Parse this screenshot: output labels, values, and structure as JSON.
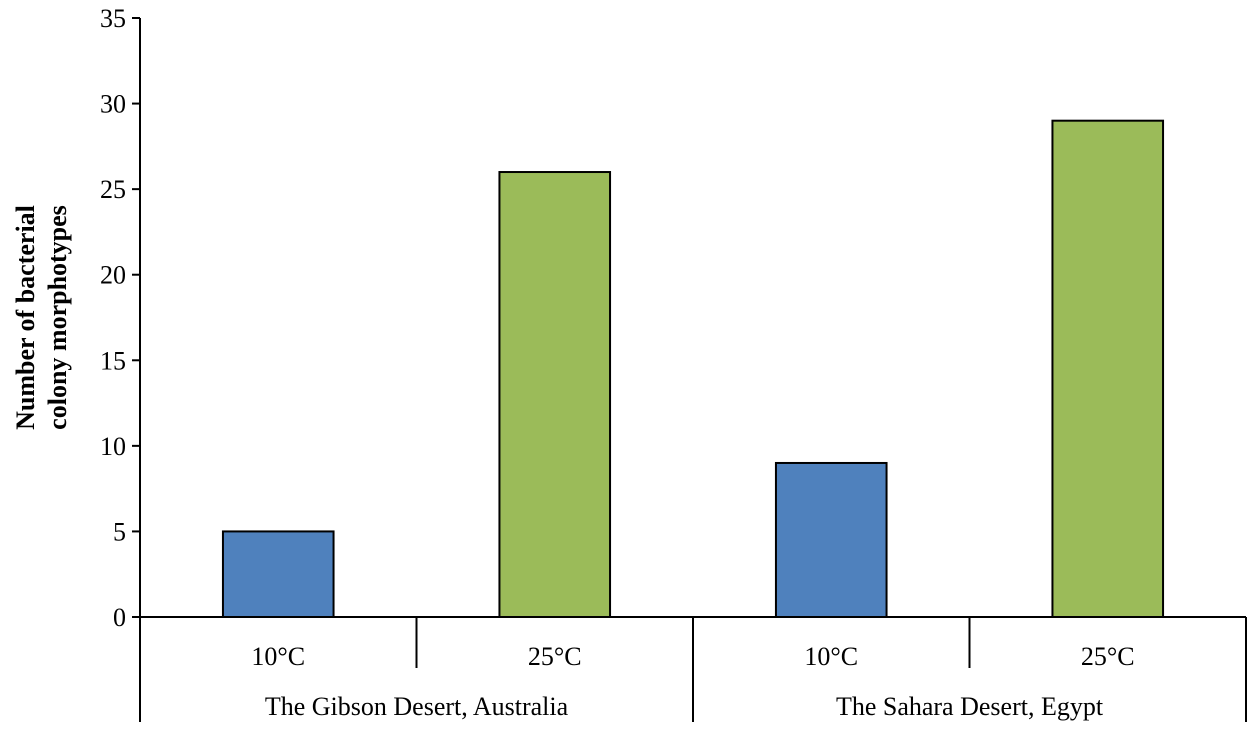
{
  "chart_data": {
    "type": "bar",
    "ylabel_lines": [
      "Number of bacterial",
      "colony morphotypes"
    ],
    "ylim": [
      0,
      35
    ],
    "yticks": [
      0,
      5,
      10,
      15,
      20,
      25,
      30,
      35
    ],
    "groups": [
      {
        "label": "The Gibson Desert, Australia",
        "bars": [
          {
            "category": "10°C",
            "value": 5,
            "color": "#4f81bd"
          },
          {
            "category": "25°C",
            "value": 26,
            "color": "#9bbb59"
          }
        ]
      },
      {
        "label": "The Sahara Desert, Egypt",
        "bars": [
          {
            "category": "10°C",
            "value": 9,
            "color": "#4f81bd"
          },
          {
            "category": "25°C",
            "value": 29,
            "color": "#9bbb59"
          }
        ]
      }
    ],
    "grid": false,
    "legend": "none"
  }
}
